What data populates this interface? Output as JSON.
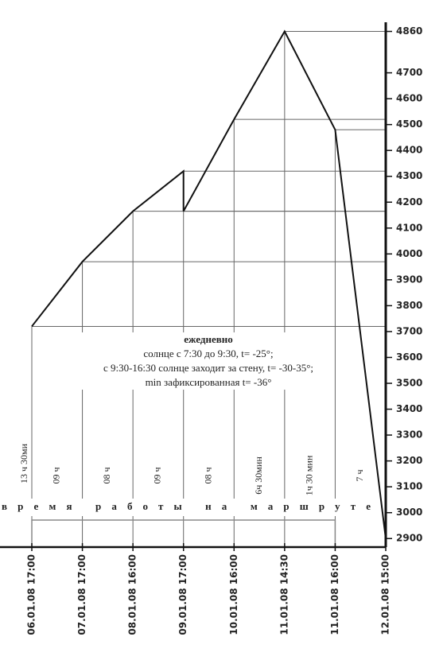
{
  "chart_data": {
    "type": "line",
    "x": [
      "06.01.08 17:00",
      "07.01.08 17:00",
      "08.01.08 16:00",
      "09.01.08 17:00",
      null,
      "10.01.08 16:00",
      "11.01.08 14:30",
      "11.01.08 16:00",
      "12.01.08 15:00"
    ],
    "series": [
      {
        "color": "#111111",
        "values": [
          3720,
          3970,
          4165,
          4320,
          4165,
          4520,
          4860,
          4480,
          2900
        ]
      }
    ],
    "ylim": [
      2870,
      4920
    ],
    "yticks": [
      2900,
      3000,
      3100,
      3200,
      3300,
      3400,
      3500,
      3600,
      3700,
      3800,
      3900,
      4000,
      4100,
      4200,
      4300,
      4400,
      4500,
      4600,
      4700,
      4860
    ],
    "annotation": {
      "heading": "ежедневно",
      "lines": [
        "солнце с 7:30 до 9:30, t= -25°;",
        "с 9:30-16:30 солнце заходит за стену, t= -30-35°;",
        "min зафиксированная t= -36°"
      ]
    },
    "durations": [
      "13 ч 30ми",
      "09 ч",
      "08 ч",
      "09 ч",
      "08 ч",
      "6ч 30мин",
      "1ч 30 мин",
      "7 ч"
    ],
    "band_label": "время работы на маршруте"
  }
}
